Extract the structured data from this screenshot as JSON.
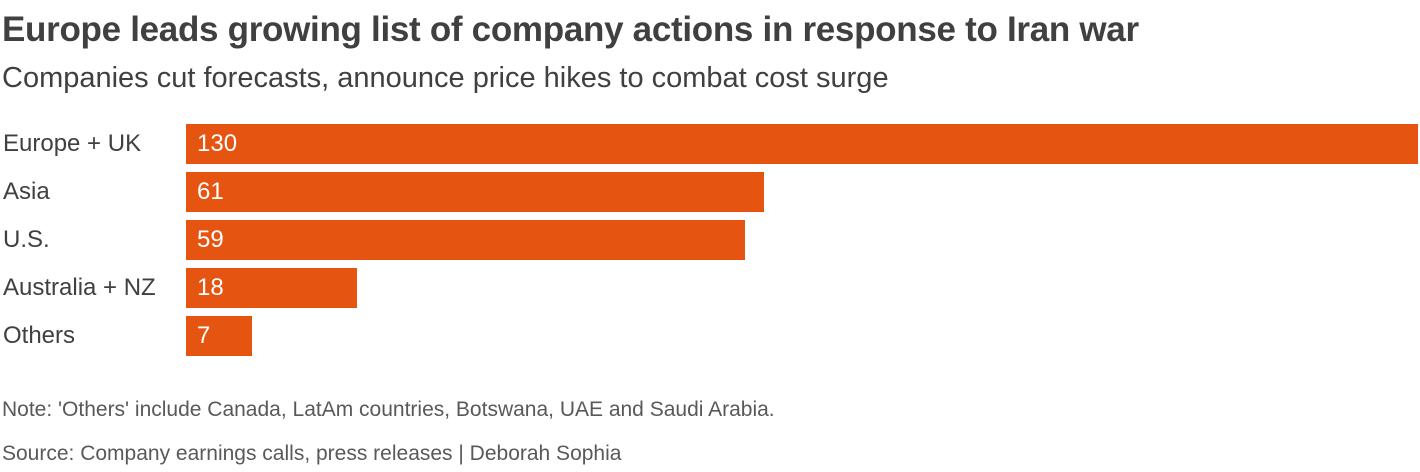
{
  "header": {
    "title": "Europe leads growing list of company actions in response to Iran war",
    "subtitle": "Companies cut forecasts, announce price hikes to combat cost surge"
  },
  "chart_data": {
    "type": "bar",
    "orientation": "horizontal",
    "title": "Europe leads growing list of company actions in response to Iran war",
    "subtitle": "Companies cut forecasts, announce price hikes to combat cost surge",
    "categories": [
      "Europe + UK",
      "Asia",
      "U.S.",
      "Australia + NZ",
      "Others"
    ],
    "values": [
      130,
      61,
      59,
      18,
      7
    ],
    "value_labels": [
      "130",
      "61",
      "59",
      "18",
      "7"
    ],
    "xlabel": "",
    "ylabel": "",
    "xlim": [
      0,
      130
    ],
    "grid": false,
    "bar_color": "#e55511",
    "value_label_color": "#ffffff",
    "data_labels": "inside-left"
  },
  "footer": {
    "note": "Note: 'Others' include Canada, LatAm countries, Botswana, UAE and Saudi Arabia.",
    "source": "Source: Company earnings calls, press releases | Deborah Sophia"
  }
}
